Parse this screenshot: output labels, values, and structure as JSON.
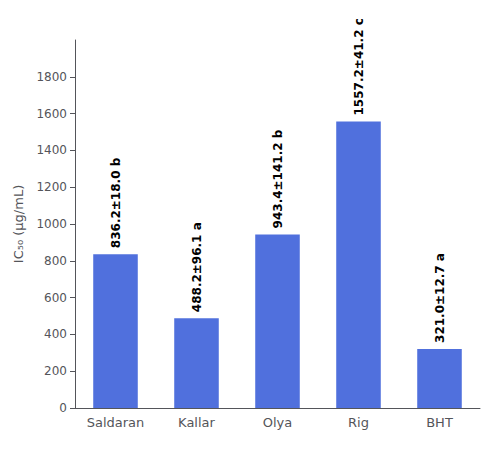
{
  "chart_data": {
    "type": "bar",
    "categories": [
      "Saldaran",
      "Kallar",
      "Olya",
      "Rig",
      "BHT"
    ],
    "values": [
      836.2,
      488.2,
      943.4,
      1557.2,
      321.0
    ],
    "data_labels": true,
    "value_labels": [
      "836.2±18.0 b",
      "488.2±96.1 a",
      "943.4±141.2 b",
      "1557.2±41.2 c",
      "321.0±12.7 a"
    ],
    "ylabel": "IC₅₀ (μg/mL)",
    "ylim": [
      0,
      2000
    ],
    "yticks": [
      0,
      200,
      400,
      600,
      800,
      1000,
      1200,
      1400,
      1600,
      1800
    ],
    "grid": false
  }
}
